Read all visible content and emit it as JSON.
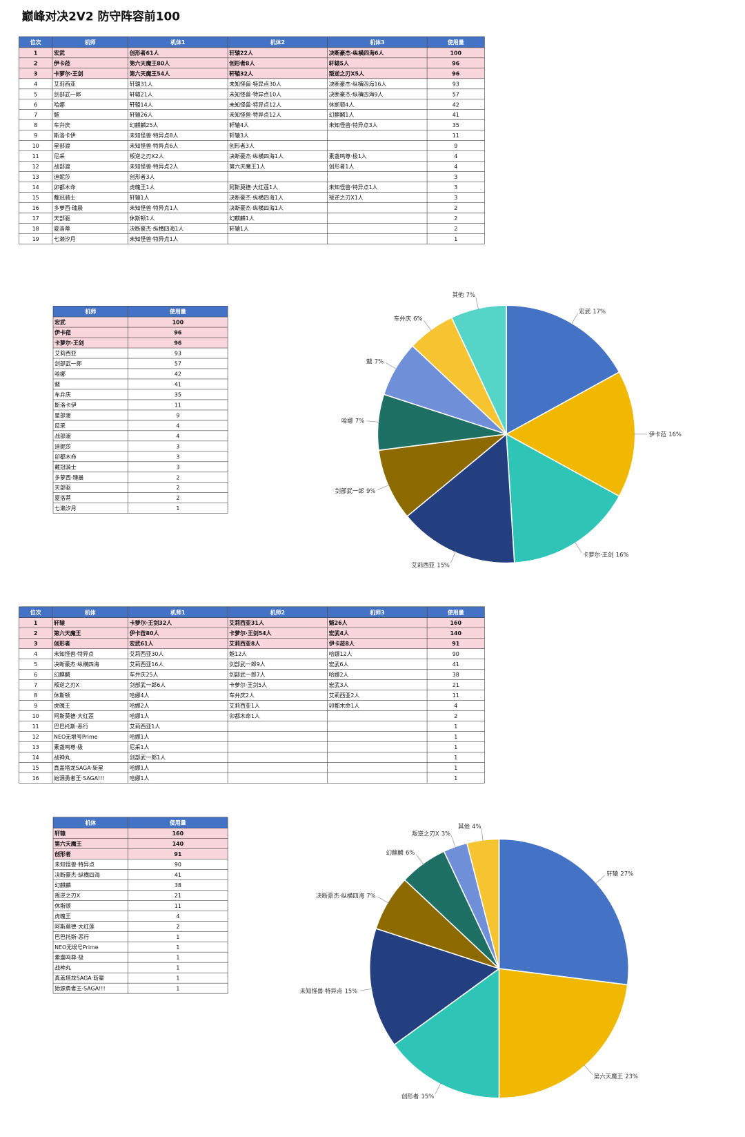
{
  "title": "巅峰对决2V2 防守阵容前100",
  "table1": {
    "header": [
      "位次",
      "机师",
      "机体1",
      "机体2",
      "机体3",
      "使用量"
    ],
    "rows": [
      [
        1,
        "宏武",
        "创形者61人",
        "轩辕22人",
        "决断豪杰·纵横四海6人",
        100
      ],
      [
        2,
        "伊卡菈",
        "第六天魔王80人",
        "创形者8人",
        "轩辕5人",
        96
      ],
      [
        3,
        "卡萝尔·王剑",
        "第六天魔王54人",
        "轩辕32人",
        "叛逆之刃X5人",
        96
      ],
      [
        4,
        "艾莉西亚",
        "轩辕31人",
        "未知怪兽·特异点30人",
        "决断豪杰·纵横四海16人",
        93
      ],
      [
        5,
        "剑部武一郎",
        "轩辕21人",
        "未知怪兽·特异点10人",
        "决断豪杰·纵横四海9人",
        57
      ],
      [
        6,
        "哈娜",
        "轩辕14人",
        "未知怪兽·特异点12人",
        "休斯顿4人",
        42
      ],
      [
        7,
        "魃",
        "轩辕26人",
        "未知怪兽·特异点12人",
        "幻麒麟1人",
        41
      ],
      [
        8,
        "车弁庆",
        "幻麒麟25人",
        "轩辕4人",
        "未知怪兽·特异点3人",
        35
      ],
      [
        9,
        "斯洛卡伊",
        "未知怪兽·特异点8人",
        "轩辕3人",
        null,
        11
      ],
      [
        10,
        "星部渡",
        "未知怪兽·特异点6人",
        "创形者3人",
        null,
        9
      ],
      [
        11,
        "尼采",
        "叛逆之刃X2人",
        "决断豪杰·纵横四海1人",
        "素盏鸣尊·极1人",
        4
      ],
      [
        12,
        "战部渡",
        "未知怪兽·特异点2人",
        "第六天魔王1人",
        "创形者1人",
        4
      ],
      [
        13,
        "迪妮莎",
        "创形者3人",
        null,
        null,
        3
      ],
      [
        14,
        "卯都木命",
        "虎魄王1人",
        "阿斯莫德·大红莲1人",
        "未知怪兽·特异点1人",
        3
      ],
      [
        15,
        "戴冠骑士",
        "轩辕1人",
        "决断豪杰·纵横四海1人",
        "叛逆之刃X1人",
        3
      ],
      [
        16,
        "多萝西·瑰晨",
        "未知怪兽·特异点1人",
        "决断豪杰·纵横四海1人",
        null,
        2
      ],
      [
        17,
        "天部驱",
        "休斯顿1人",
        "幻麒麟1人",
        null,
        2
      ],
      [
        18,
        "夏洛蒂",
        "决断豪杰·纵横四海1人",
        "轩辕1人",
        null,
        2
      ],
      [
        19,
        "七濑汐月",
        "未知怪兽·特异点1人",
        null,
        null,
        1
      ]
    ]
  },
  "table2": {
    "header": [
      "机师",
      "使用量"
    ],
    "rows": [
      [
        "宏武",
        100
      ],
      [
        "伊卡菈",
        96
      ],
      [
        "卡萝尔·王剑",
        96
      ],
      [
        "艾莉西亚",
        93
      ],
      [
        "剑部武一郎",
        57
      ],
      [
        "哈娜",
        42
      ],
      [
        "魃",
        41
      ],
      [
        "车弁庆",
        35
      ],
      [
        "斯洛卡伊",
        11
      ],
      [
        "星部渡",
        9
      ],
      [
        "尼采",
        4
      ],
      [
        "战部渡",
        4
      ],
      [
        "迪妮莎",
        3
      ],
      [
        "卯都木命",
        3
      ],
      [
        "戴冠骑士",
        3
      ],
      [
        "多萝西·瑰晨",
        2
      ],
      [
        "天部驱",
        2
      ],
      [
        "夏洛蒂",
        2
      ],
      [
        "七濑汐月",
        1
      ]
    ]
  },
  "table3": {
    "header": [
      "位次",
      "机体",
      "机师1",
      "机师2",
      "机师3",
      "使用量"
    ],
    "rows": [
      [
        1,
        "轩辕",
        "卡萝尔·王剑32人",
        "艾莉西亚31人",
        "魃26人",
        160
      ],
      [
        2,
        "第六天魔王",
        "伊卡菈80人",
        "卡萝尔·王剑54人",
        "宏武4人",
        140
      ],
      [
        3,
        "创形者",
        "宏武61人",
        "艾莉西亚8人",
        "伊卡菈8人",
        91
      ],
      [
        4,
        "未知怪兽·特异点",
        "艾莉西亚30人",
        "魃12人",
        "哈娜12人",
        90
      ],
      [
        5,
        "决断豪杰·纵横四海",
        "艾莉西亚16人",
        "剑部武一郎9人",
        "宏武6人",
        41
      ],
      [
        6,
        "幻麒麟",
        "车弁庆25人",
        "剑部武一郎7人",
        "哈娜2人",
        38
      ],
      [
        7,
        "叛逆之刃X",
        "剑部武一郎6人",
        "卡萝尔·王剑5人",
        "宏武3人",
        21
      ],
      [
        8,
        "休斯顿",
        "哈娜4人",
        "车弁庆2人",
        "艾莉西亚2人",
        11
      ],
      [
        9,
        "虎魄王",
        "哈娜2人",
        "艾莉西亚1人",
        "卯都木命1人",
        4
      ],
      [
        10,
        "阿斯莫德·大红莲",
        "哈娜1人",
        "卯都木命1人",
        null,
        2
      ],
      [
        11,
        "巴巴托斯·恶行",
        "艾莉西亚1人",
        null,
        null,
        1
      ],
      [
        12,
        "NEO无垠号Prime",
        "哈娜1人",
        null,
        null,
        1
      ],
      [
        13,
        "素盏鸣尊·极",
        "尼采1人",
        null,
        null,
        1
      ],
      [
        14,
        "战神丸",
        "剑部武一郎1人",
        null,
        null,
        1
      ],
      [
        15,
        "真盖塔龙SAGA·斩星",
        "哈娜1人",
        null,
        null,
        1
      ],
      [
        16,
        "始源勇者王·SAGA!!!",
        "哈娜1人",
        null,
        null,
        1
      ]
    ]
  },
  "table4": {
    "header": [
      "机体",
      "使用量"
    ],
    "rows": [
      [
        "轩辕",
        160
      ],
      [
        "第六天魔王",
        140
      ],
      [
        "创形者",
        91
      ],
      [
        "未知怪兽·特异点",
        90
      ],
      [
        "决断豪杰·纵横四海",
        41
      ],
      [
        "幻麒麟",
        38
      ],
      [
        "叛逆之刃X",
        21
      ],
      [
        "休斯顿",
        11
      ],
      [
        "虎魄王",
        4
      ],
      [
        "阿斯莫德·大红莲",
        2
      ],
      [
        "巴巴托斯·恶行",
        1
      ],
      [
        "NEO无垠号Prime",
        1
      ],
      [
        "素盏鸣尊·极",
        1
      ],
      [
        "战神丸",
        1
      ],
      [
        "真盖塔龙SAGA·斩星",
        1
      ],
      [
        "始源勇者王·SAGA!!!",
        1
      ]
    ]
  },
  "chart_data": [
    {
      "type": "pie",
      "categories": [
        "宏武",
        "伊卡菈",
        "卡萝尔·王剑",
        "艾莉西亚",
        "剑部武一郎",
        "哈娜",
        "魃",
        "车弁庆",
        "其他"
      ],
      "values": [
        17,
        16,
        16,
        15,
        9,
        7,
        7,
        6,
        7
      ],
      "value_labels": [
        "17%",
        "16%",
        "16%",
        "15%",
        "9%",
        "7%",
        "7%",
        "6%",
        "7%"
      ],
      "colors": [
        "#4472c4",
        "#f0b800",
        "#2ec4b6",
        "#243f80",
        "#8c6a00",
        "#1e7064",
        "#6f8fd8",
        "#f6c431",
        "#55d5c8"
      ]
    },
    {
      "type": "pie",
      "categories": [
        "轩辕",
        "第六天魔王",
        "创形者",
        "未知怪兽·特异点",
        "决断豪杰·纵横四海",
        "幻麒麟",
        "叛逆之刃X",
        "其他"
      ],
      "values": [
        27,
        23,
        15,
        15,
        7,
        6,
        3,
        4
      ],
      "value_labels": [
        "27%",
        "23%",
        "15%",
        "15%",
        "7%",
        "6%",
        "3%",
        "4%"
      ],
      "colors": [
        "#4472c4",
        "#f0b800",
        "#2ec4b6",
        "#243f80",
        "#8c6a00",
        "#1e7064",
        "#6f8fd8",
        "#f6c431"
      ]
    }
  ]
}
